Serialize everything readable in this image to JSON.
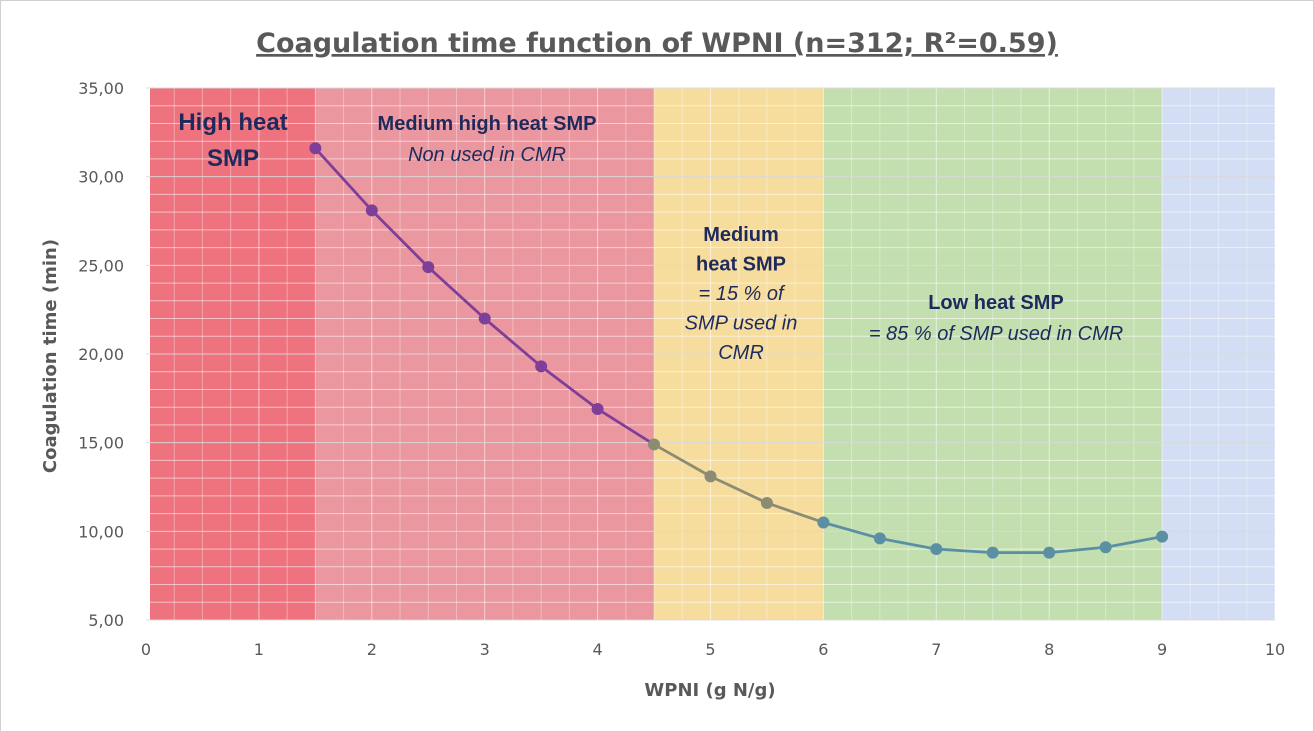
{
  "chart_data": {
    "type": "line",
    "title": "Coagulation time function  of WPNI (n=312; R²=0.59)",
    "xlabel": "WPNI (g N/g)",
    "ylabel": "Coagulation time (min)",
    "xlim": [
      0,
      10
    ],
    "ylim": [
      5,
      35
    ],
    "x_ticks": [
      0,
      1,
      2,
      3,
      4,
      5,
      6,
      7,
      8,
      9,
      10
    ],
    "x_tick_labels": [
      "0",
      "1",
      "2",
      "3",
      "4",
      "5",
      "6",
      "7",
      "8",
      "9",
      "10"
    ],
    "y_ticks": [
      5,
      10,
      15,
      20,
      25,
      30,
      35
    ],
    "y_tick_labels": [
      "5,00",
      "10,00",
      "15,00",
      "20,00",
      "25,00",
      "30,00",
      "35,00"
    ],
    "grid": true,
    "series": [
      {
        "name": "Coagulation time",
        "x": [
          1.5,
          2,
          2.5,
          3,
          3.5,
          4,
          4.5,
          5,
          5.5,
          6,
          6.5,
          7,
          7.5,
          8,
          8.5,
          9
        ],
        "y": [
          31.6,
          28.1,
          24.9,
          22.0,
          19.3,
          16.9,
          14.9,
          13.1,
          11.6,
          10.5,
          9.6,
          9.0,
          8.8,
          8.8,
          9.1,
          9.7
        ]
      }
    ],
    "zones": [
      {
        "from": 0,
        "to": 1.5,
        "color": "#ec5b69",
        "opacity": 0.85,
        "line_color": "#7f3f98",
        "lines": [
          {
            "text": "High heat",
            "style": "bold"
          },
          {
            "text": "SMP",
            "style": "bold"
          }
        ]
      },
      {
        "from": 1.5,
        "to": 4.5,
        "color": "#e5808b",
        "opacity": 0.82,
        "line_color": "#7f3f98",
        "lines": [
          {
            "text": "Medium high heat SMP",
            "style": "bold"
          },
          {
            "text": "Non used in CMR",
            "style": "italic"
          }
        ]
      },
      {
        "from": 4.5,
        "to": 6,
        "color": "#f3d27c",
        "opacity": 0.75,
        "line_color": "#8c8c74",
        "lines": [
          {
            "text": "Medium",
            "style": "bold"
          },
          {
            "text": "heat SMP",
            "style": "bold"
          },
          {
            "text": "= 15 % of",
            "style": "italic"
          },
          {
            "text": "SMP used in",
            "style": "italic"
          },
          {
            "text": "CMR",
            "style": "italic"
          }
        ]
      },
      {
        "from": 6,
        "to": 9,
        "color": "#a9d18e",
        "opacity": 0.7,
        "line_color": "#5b8fa3",
        "lines": [
          {
            "text": "Low heat SMP",
            "style": "bold"
          },
          {
            "text": "= 85 % of SMP used in CMR",
            "style": "italic"
          }
        ]
      },
      {
        "from": 9,
        "to": 10,
        "color": "#bccbee",
        "opacity": 0.65,
        "line_color": "#5b8fa3",
        "lines": []
      }
    ]
  }
}
